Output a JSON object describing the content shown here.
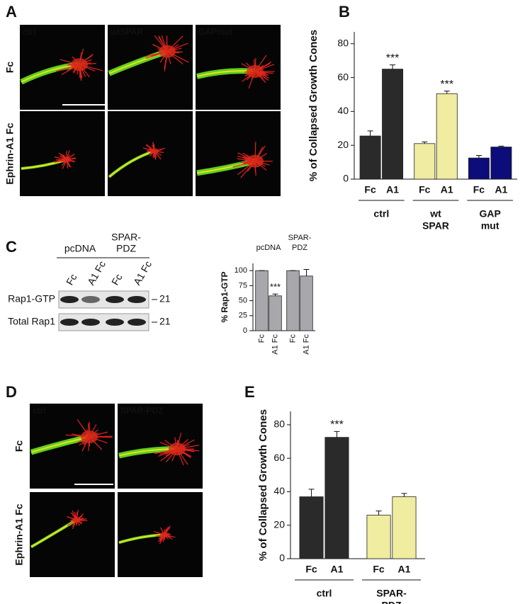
{
  "panel_labels": [
    "A",
    "B",
    "C",
    "D",
    "E"
  ],
  "panel_a": {
    "columns": [
      "ctrl",
      "wtSPAR",
      "GAPmut"
    ],
    "rows": [
      "Fc",
      "Ephrin-A1 Fc"
    ]
  },
  "panel_c_blot": {
    "groups": [
      [
        "pcDNA"
      ],
      [
        "SPAR-",
        "PDZ"
      ]
    ],
    "lanes": [
      "Fc",
      "A1 Fc",
      "Fc",
      "A1 Fc"
    ],
    "rows": [
      "Rap1-GTP",
      "Total Rap1"
    ],
    "size_markers": [
      "21",
      "21"
    ]
  },
  "panel_d": {
    "columns": [
      "ctrl",
      "SPAR-PDZ"
    ],
    "rows": [
      "Fc",
      "Ephrin-A1 Fc"
    ]
  },
  "chart_data": [
    {
      "type": "bar",
      "y_label": "% of Collapsed Growth Cones",
      "ylim": [
        0,
        87
      ],
      "yticks": [
        0,
        20,
        40,
        60,
        80
      ],
      "group_label_position": "bottom",
      "groups": [
        {
          "label": [
            "ctrl"
          ],
          "color": "#2a2a2a",
          "categories": [
            "Fc",
            "A1"
          ],
          "values": [
            25.5,
            65
          ],
          "errors": [
            3,
            2.5
          ],
          "value_annotations": [
            null,
            "***"
          ]
        },
        {
          "label": [
            "wt",
            "SPAR"
          ],
          "color": "#f0eca0",
          "categories": [
            "Fc",
            "A1"
          ],
          "values": [
            21,
            50.5
          ],
          "errors": [
            1,
            1.5
          ],
          "value_annotations": [
            null,
            "***"
          ]
        },
        {
          "label": [
            "GAP",
            "mut"
          ],
          "color": "#0c0c7a",
          "categories": [
            "Fc",
            "A1"
          ],
          "values": [
            12.5,
            19
          ],
          "errors": [
            1.5,
            0.5
          ],
          "value_annotations": [
            null,
            null
          ]
        }
      ]
    },
    {
      "type": "bar",
      "y_label": "% Rap1-GTP",
      "ylim": [
        0,
        112
      ],
      "yticks": [
        0,
        25,
        50,
        75,
        100
      ],
      "group_label_position": "top",
      "category_label_rotation": -90,
      "groups": [
        {
          "label": [
            "pcDNA"
          ],
          "color": "#a8a8ac",
          "categories": [
            "Fc",
            "A1 Fc"
          ],
          "values": [
            100,
            58
          ],
          "errors": [
            0,
            3
          ],
          "value_annotations": [
            null,
            "***"
          ]
        },
        {
          "label": [
            "SPAR-",
            "PDZ"
          ],
          "color": "#a8a8ac",
          "categories": [
            "Fc",
            "A1 Fc"
          ],
          "values": [
            100,
            91
          ],
          "errors": [
            0,
            11
          ],
          "value_annotations": [
            null,
            null
          ]
        }
      ]
    },
    {
      "type": "bar",
      "y_label": "% of Collapsed Growth Cones",
      "ylim": [
        0,
        88
      ],
      "yticks": [
        0,
        20,
        40,
        60,
        80
      ],
      "group_label_position": "bottom",
      "groups": [
        {
          "label": [
            "ctrl"
          ],
          "color": "#2a2a2a",
          "categories": [
            "Fc",
            "A1"
          ],
          "values": [
            37,
            72.5
          ],
          "errors": [
            4.5,
            3.5
          ],
          "value_annotations": [
            null,
            "***"
          ]
        },
        {
          "label": [
            "SPAR-",
            "PDZ"
          ],
          "color": "#f0eca0",
          "categories": [
            "Fc",
            "A1"
          ],
          "values": [
            26,
            37
          ],
          "errors": [
            2.5,
            2
          ],
          "value_annotations": [
            null,
            null
          ]
        }
      ]
    }
  ]
}
